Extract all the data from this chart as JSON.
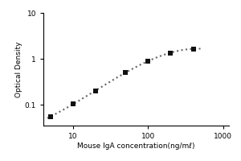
{
  "x_data": [
    5.0,
    10.0,
    20.0,
    50.0,
    100.0,
    200.0,
    400.0
  ],
  "y_data": [
    0.055,
    0.105,
    0.2,
    0.5,
    0.9,
    1.35,
    1.65
  ],
  "xlabel": "Mouse IgA concentration(ng/mℓ)",
  "ylabel": "Optical Density",
  "xlim": [
    4.0,
    1200.0
  ],
  "ylim": [
    0.035,
    10.0
  ],
  "xticks": [
    10,
    100,
    1000
  ],
  "yticks": [
    0.1,
    1,
    10
  ],
  "ytick_labels": [
    "0.1",
    "1",
    "10"
  ],
  "xtick_labels": [
    "10",
    "100",
    "1000"
  ],
  "line_color": "#666666",
  "marker_color": "#111111",
  "background_color": "#ffffff",
  "marker_size": 4,
  "line_style": "dotted",
  "line_width": 1.5,
  "xlabel_fontsize": 6.5,
  "ylabel_fontsize": 6.5,
  "tick_fontsize": 6.5,
  "fig_width": 3.0,
  "fig_height": 2.0,
  "dpi": 100
}
